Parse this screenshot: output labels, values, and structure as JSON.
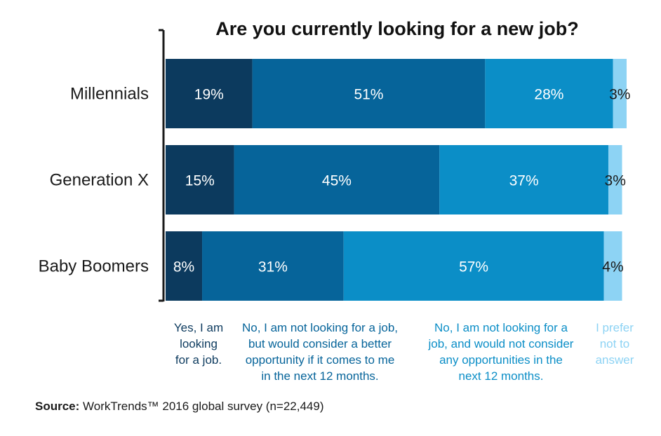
{
  "chart_data": {
    "type": "bar",
    "orientation": "horizontal",
    "stacked": true,
    "title": "Are you currently looking for a new job?",
    "categories": [
      "Millennials",
      "Generation X",
      "Baby Boomers"
    ],
    "series": [
      {
        "name": "Yes, I am looking for a job.",
        "legend_lines": [
          "Yes, I am",
          "looking",
          "for a job."
        ],
        "values": [
          19,
          15,
          8
        ],
        "labels": [
          "19%",
          "15%",
          "8%"
        ],
        "color": "#0c3a5e",
        "label_color": "#ffffff",
        "legend_color": "#0c3a5e"
      },
      {
        "name": "No, I am not looking for a job, but would consider a better opportunity if it comes to me in the next 12 months.",
        "legend_lines": [
          "No, I am not looking for a job,",
          "but would consider a better",
          "opportunity if it comes to me",
          "in the next 12 months."
        ],
        "values": [
          51,
          45,
          31
        ],
        "labels": [
          "51%",
          "45%",
          "31%"
        ],
        "color": "#06649a",
        "label_color": "#ffffff",
        "legend_color": "#06649a"
      },
      {
        "name": "No, I am not looking for a job, and would not consider any opportunities in the next 12 months.",
        "legend_lines": [
          "No, I am not looking for a",
          "job, and would not consider",
          "any opportunities in the",
          "next 12 months."
        ],
        "values": [
          28,
          37,
          57
        ],
        "labels": [
          "28%",
          "37%",
          "57%"
        ],
        "color": "#0b8ec7",
        "label_color": "#ffffff",
        "legend_color": "#0b8ec7"
      },
      {
        "name": "I prefer not to answer",
        "legend_lines": [
          "I prefer",
          "not to",
          "answer"
        ],
        "values": [
          3,
          3,
          4
        ],
        "labels": [
          "3%",
          "3%",
          "4%"
        ],
        "color": "#8dd3f4",
        "label_color": "#1a1a1a",
        "legend_color": "#8dd3f4"
      }
    ],
    "xlim": [
      0,
      101
    ],
    "grid": false,
    "legend_position": "bottom"
  },
  "source": {
    "label": "Source:",
    "text": " WorkTrends™ 2016 global survey (n=22,449)"
  }
}
